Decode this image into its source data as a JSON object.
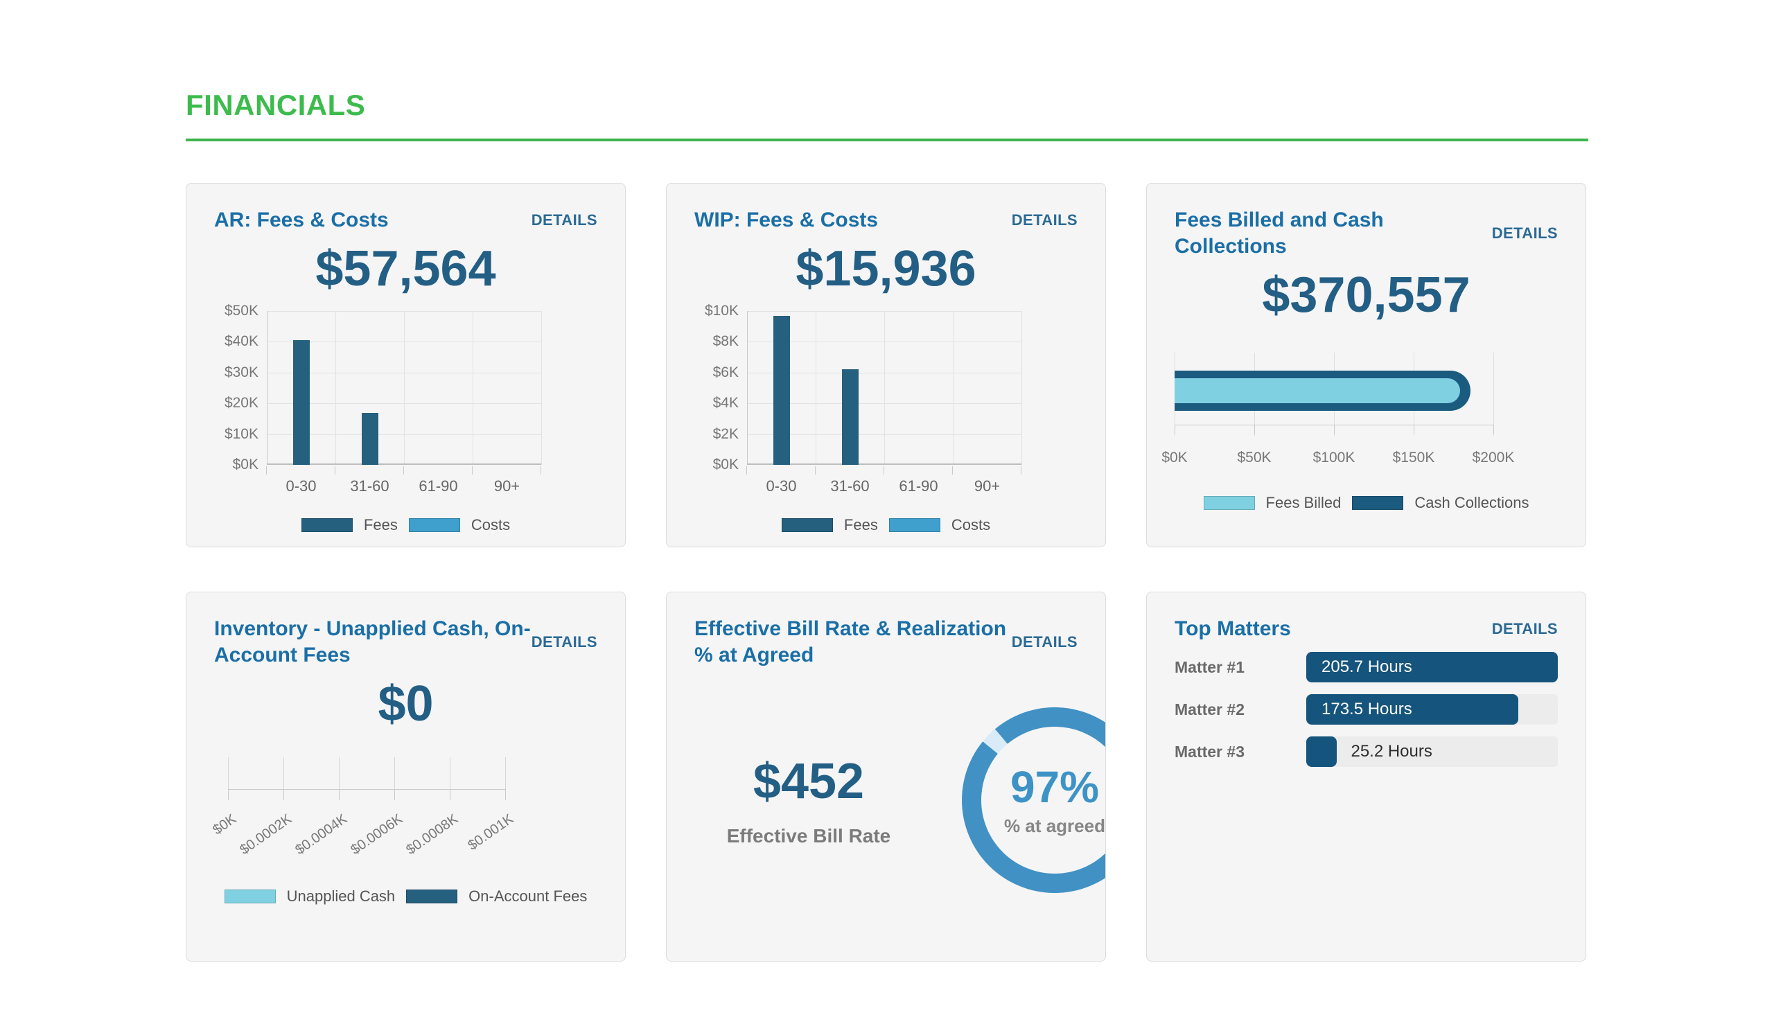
{
  "page": {
    "title": "FINANCIALS"
  },
  "labels": {
    "details": "DETAILS"
  },
  "colors": {
    "accent_green": "#3dbb4d",
    "title_blue": "#1b6fa6",
    "value_navy": "#235e84",
    "details_blue": "#2b6a94",
    "fees_dark": "#26607f",
    "costs_light": "#3fa0cd",
    "cyan_light": "#7fd1e1",
    "bullet_dark": "#1b5b80",
    "matters_navy": "#15547c",
    "ring_blue": "#4191c5",
    "ring_gap": "#d9ebf6"
  },
  "cards": {
    "ar": {
      "title": "AR: Fees & Costs",
      "value": "$57,564"
    },
    "wip": {
      "title": "WIP: Fees & Costs",
      "value": "$15,936"
    },
    "billed": {
      "title": "Fees Billed and Cash Collections",
      "value": "$370,557"
    },
    "inventory": {
      "title": "Inventory - Unapplied Cash, On-Account Fees",
      "value": "$0"
    },
    "ebr": {
      "title": "Effective Bill Rate & Realization % at Agreed",
      "rate_value": "$452",
      "rate_label": "Effective Bill Rate",
      "pct_value": "97%",
      "pct_label": "% at agreed"
    },
    "matters": {
      "title": "Top Matters",
      "rows": [
        {
          "label": "Matter #1",
          "value": "205.7 Hours"
        },
        {
          "label": "Matter #2",
          "value": "173.5 Hours"
        },
        {
          "label": "Matter #3",
          "value": "25.2 Hours"
        }
      ]
    }
  },
  "chart_data": [
    {
      "card": "ar",
      "type": "bar",
      "title": "AR: Fees & Costs",
      "categories": [
        "0-30",
        "31-60",
        "61-90",
        "90+"
      ],
      "series": [
        {
          "name": "Fees",
          "color": "#26607f",
          "values": [
            40600,
            16900,
            0,
            0
          ]
        },
        {
          "name": "Costs",
          "color": "#3fa0cd",
          "values": [
            0,
            0,
            0,
            0
          ]
        }
      ],
      "ylim": [
        0,
        50000
      ],
      "ytick_labels": [
        "$0K",
        "$10K",
        "$20K",
        "$30K",
        "$40K",
        "$50K"
      ],
      "grid": true,
      "legend_position": "bottom"
    },
    {
      "card": "wip",
      "type": "bar",
      "title": "WIP: Fees & Costs",
      "categories": [
        "0-30",
        "31-60",
        "61-90",
        "90+"
      ],
      "series": [
        {
          "name": "Fees",
          "color": "#26607f",
          "values": [
            9700,
            6200,
            0,
            0
          ]
        },
        {
          "name": "Costs",
          "color": "#3fa0cd",
          "values": [
            0,
            0,
            0,
            0
          ]
        }
      ],
      "ylim": [
        0,
        10000
      ],
      "ytick_labels": [
        "$0K",
        "$2K",
        "$4K",
        "$6K",
        "$8K",
        "$10K"
      ],
      "grid": true,
      "legend_position": "bottom"
    },
    {
      "card": "billed",
      "type": "bullet",
      "title": "Fees Billed and Cash Collections",
      "series": [
        {
          "name": "Fees Billed",
          "color": "#7fd1e1",
          "value": 185000
        },
        {
          "name": "Cash Collections",
          "color": "#1b5b80",
          "value": 185500
        }
      ],
      "xlim": [
        0,
        200000
      ],
      "xtick_labels": [
        "$0K",
        "$50K",
        "$100K",
        "$150K",
        "$200K"
      ],
      "legend_position": "bottom"
    },
    {
      "card": "inventory",
      "type": "axis",
      "title": "Inventory - Unapplied Cash, On-Account Fees",
      "series": [
        {
          "name": "Unapplied Cash",
          "color": "#7fd1e1",
          "value": 0
        },
        {
          "name": "On-Account Fees",
          "color": "#26607f",
          "value": 0
        }
      ],
      "xlim": [
        0,
        1
      ],
      "xtick_labels": [
        "$0K",
        "$0.0002K",
        "$0.0004K",
        "$0.0006K",
        "$0.0008K",
        "$0.001K"
      ],
      "legend_position": "bottom"
    },
    {
      "card": "ebr",
      "type": "donut",
      "value_pct": 97,
      "remainder_pct": 3,
      "ring_color": "#4191c5",
      "gap_color": "#d9ebf6",
      "center_label": "97%",
      "sub_label": "% at agreed"
    },
    {
      "card": "matters",
      "type": "hbar",
      "categories": [
        "Matter #1",
        "Matter #2",
        "Matter #3"
      ],
      "values": [
        205.7,
        173.5,
        25.2
      ],
      "unit": "Hours",
      "xmax": 205.7,
      "bar_color": "#15547c",
      "track_color": "#ececec"
    }
  ]
}
